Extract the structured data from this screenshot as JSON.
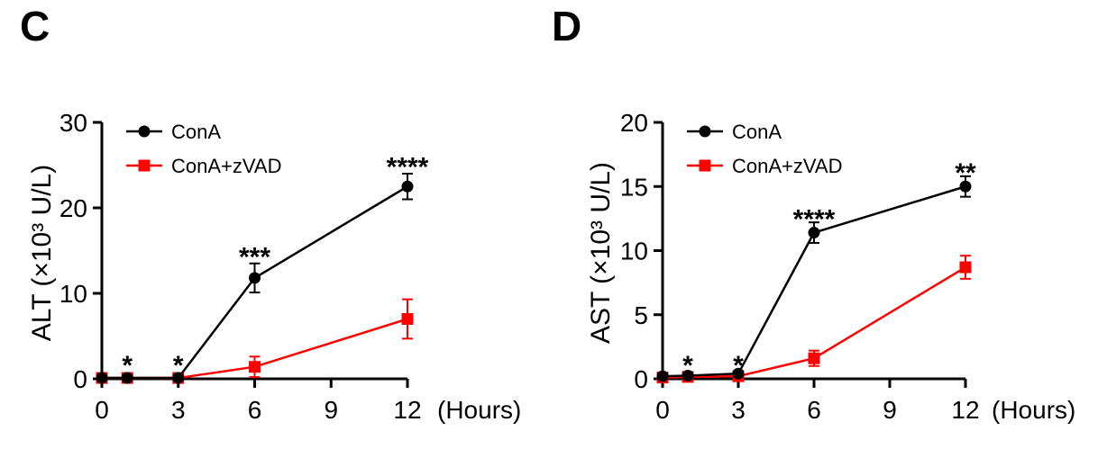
{
  "chart_data": [
    {
      "panel": "C",
      "type": "line",
      "ylabel": "ALT (×10³ U/L)",
      "xunit": "(Hours)",
      "x": [
        0,
        1,
        3,
        6,
        12
      ],
      "xticks": [
        0,
        3,
        6,
        9,
        12
      ],
      "xlim": [
        0,
        12
      ],
      "yticks": [
        0,
        10,
        20,
        30
      ],
      "ylim": [
        0,
        30
      ],
      "series": [
        {
          "name": "ConA",
          "color": "#000000",
          "marker": "circle",
          "values": [
            0.1,
            0.1,
            0.1,
            11.8,
            22.5
          ],
          "errors": [
            0.3,
            0.3,
            0.3,
            1.7,
            1.5
          ]
        },
        {
          "name": "ConA+zVAD",
          "color": "#ff0000",
          "marker": "square",
          "values": [
            0.1,
            0.1,
            0.1,
            1.4,
            7.0
          ],
          "errors": [
            0.2,
            0.2,
            0.2,
            1.2,
            2.3
          ]
        }
      ],
      "annotations": [
        {
          "x": 1,
          "text": "*",
          "y": 1.8
        },
        {
          "x": 3,
          "text": "*",
          "y": 1.8
        },
        {
          "x": 6,
          "text": "***",
          "y": 14.5
        },
        {
          "x": 12,
          "text": "****",
          "y": 25.0
        }
      ]
    },
    {
      "panel": "D",
      "type": "line",
      "ylabel": "AST (×10³ U/L)",
      "xunit": "(Hours)",
      "x": [
        0,
        1,
        3,
        6,
        12
      ],
      "xticks": [
        0,
        3,
        6,
        9,
        12
      ],
      "xlim": [
        0,
        12
      ],
      "yticks": [
        0,
        5,
        10,
        15,
        20
      ],
      "ylim": [
        0,
        20
      ],
      "series": [
        {
          "name": "ConA",
          "color": "#000000",
          "marker": "circle",
          "values": [
            0.2,
            0.25,
            0.4,
            11.4,
            15.0
          ],
          "errors": [
            0.2,
            0.2,
            0.2,
            0.8,
            0.8
          ]
        },
        {
          "name": "ConA+zVAD",
          "color": "#ff0000",
          "marker": "square",
          "values": [
            0.1,
            0.15,
            0.2,
            1.6,
            8.7
          ],
          "errors": [
            0.2,
            0.2,
            0.2,
            0.6,
            0.9
          ]
        }
      ],
      "annotations": [
        {
          "x": 1,
          "text": "*",
          "y": 1.2
        },
        {
          "x": 3,
          "text": "*",
          "y": 1.2
        },
        {
          "x": 6,
          "text": "****",
          "y": 12.6
        },
        {
          "x": 12,
          "text": "**",
          "y": 16.2
        }
      ]
    }
  ]
}
